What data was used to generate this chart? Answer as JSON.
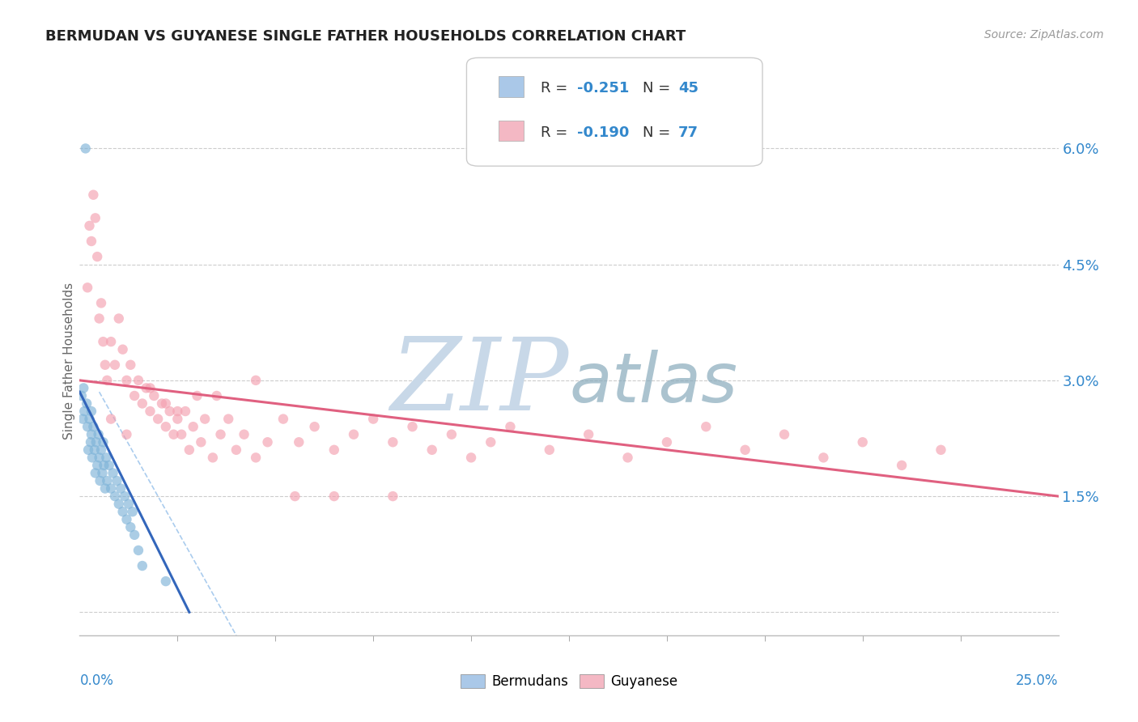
{
  "title": "BERMUDAN VS GUYANESE SINGLE FATHER HOUSEHOLDS CORRELATION CHART",
  "source": "Source: ZipAtlas.com",
  "ylabel": "Single Father Households",
  "xlim": [
    0.0,
    25.0
  ],
  "ylim": [
    -0.3,
    6.8
  ],
  "yticks": [
    0.0,
    1.5,
    3.0,
    4.5,
    6.0
  ],
  "ytick_labels": [
    "",
    "1.5%",
    "3.0%",
    "4.5%",
    "6.0%"
  ],
  "blue_color": "#7EB3D8",
  "pink_color": "#F4A0B0",
  "blue_line_color": "#3366BB",
  "pink_line_color": "#E06080",
  "dash_line_color": "#AACCEE",
  "watermark_color": "#C8D8E8",
  "blue_scatter_x": [
    0.15,
    0.05,
    0.08,
    0.1,
    0.12,
    0.18,
    0.2,
    0.22,
    0.25,
    0.28,
    0.3,
    0.3,
    0.32,
    0.35,
    0.38,
    0.4,
    0.42,
    0.45,
    0.48,
    0.5,
    0.52,
    0.55,
    0.58,
    0.6,
    0.62,
    0.65,
    0.68,
    0.7,
    0.75,
    0.8,
    0.85,
    0.9,
    0.95,
    1.0,
    1.05,
    1.1,
    1.15,
    1.2,
    1.25,
    1.3,
    1.35,
    1.4,
    1.5,
    1.6,
    2.2
  ],
  "blue_scatter_y": [
    6.0,
    2.8,
    2.5,
    2.9,
    2.6,
    2.7,
    2.4,
    2.1,
    2.5,
    2.2,
    2.6,
    2.3,
    2.0,
    2.4,
    2.1,
    1.8,
    2.2,
    1.9,
    2.3,
    2.0,
    1.7,
    2.1,
    1.8,
    2.2,
    1.9,
    1.6,
    2.0,
    1.7,
    1.9,
    1.6,
    1.8,
    1.5,
    1.7,
    1.4,
    1.6,
    1.3,
    1.5,
    1.2,
    1.4,
    1.1,
    1.3,
    1.0,
    0.8,
    0.6,
    0.4
  ],
  "pink_scatter_x": [
    0.2,
    0.25,
    0.3,
    0.35,
    0.4,
    0.45,
    0.5,
    0.55,
    0.6,
    0.65,
    0.7,
    0.8,
    0.9,
    1.0,
    1.1,
    1.2,
    1.3,
    1.4,
    1.5,
    1.6,
    1.7,
    1.8,
    1.9,
    2.0,
    2.1,
    2.2,
    2.3,
    2.4,
    2.5,
    2.6,
    2.7,
    2.8,
    2.9,
    3.0,
    3.1,
    3.2,
    3.4,
    3.6,
    3.8,
    4.0,
    4.2,
    4.5,
    4.8,
    5.2,
    5.6,
    6.0,
    6.5,
    7.0,
    7.5,
    8.0,
    8.5,
    9.0,
    9.5,
    10.0,
    10.5,
    11.0,
    12.0,
    13.0,
    14.0,
    15.0,
    16.0,
    17.0,
    18.0,
    19.0,
    20.0,
    21.0,
    22.0,
    2.5,
    3.5,
    4.5,
    1.8,
    2.2,
    0.8,
    1.2,
    5.5,
    6.5,
    8.0
  ],
  "pink_scatter_y": [
    4.2,
    5.0,
    4.8,
    5.4,
    5.1,
    4.6,
    3.8,
    4.0,
    3.5,
    3.2,
    3.0,
    3.5,
    3.2,
    3.8,
    3.4,
    3.0,
    3.2,
    2.8,
    3.0,
    2.7,
    2.9,
    2.6,
    2.8,
    2.5,
    2.7,
    2.4,
    2.6,
    2.3,
    2.5,
    2.3,
    2.6,
    2.1,
    2.4,
    2.8,
    2.2,
    2.5,
    2.0,
    2.3,
    2.5,
    2.1,
    2.3,
    2.0,
    2.2,
    2.5,
    2.2,
    2.4,
    2.1,
    2.3,
    2.5,
    2.2,
    2.4,
    2.1,
    2.3,
    2.0,
    2.2,
    2.4,
    2.1,
    2.3,
    2.0,
    2.2,
    2.4,
    2.1,
    2.3,
    2.0,
    2.2,
    1.9,
    2.1,
    2.6,
    2.8,
    3.0,
    2.9,
    2.7,
    2.5,
    2.3,
    1.5,
    1.5,
    1.5
  ],
  "blue_line_x": [
    0.0,
    2.8
  ],
  "blue_line_y": [
    2.85,
    0.0
  ],
  "pink_line_x": [
    0.0,
    25.0
  ],
  "pink_line_y": [
    3.0,
    1.5
  ],
  "dash_line_x": [
    0.5,
    4.0
  ],
  "dash_line_y": [
    2.85,
    -0.3
  ]
}
